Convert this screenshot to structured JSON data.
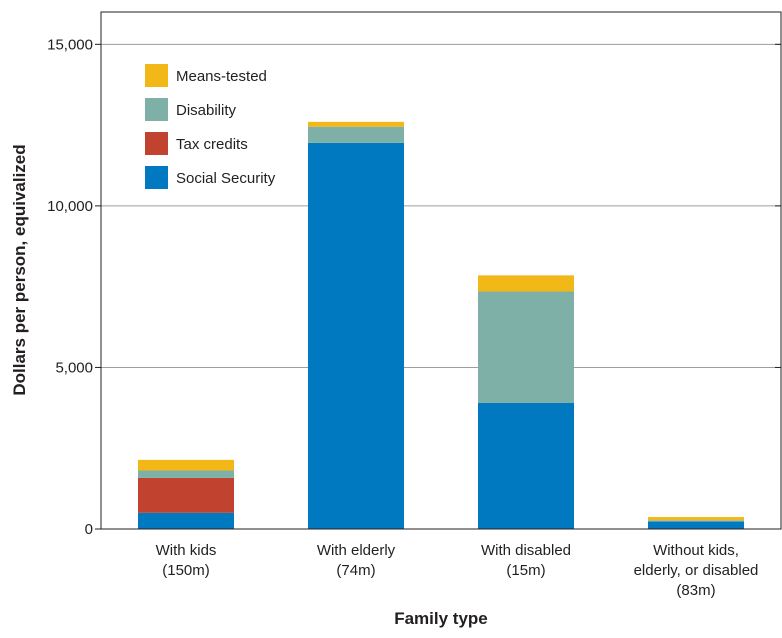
{
  "chart_data": {
    "type": "bar",
    "stacked": true,
    "title": "",
    "xlabel": "Family type",
    "ylabel": "Dollars per person, equivalized",
    "ylim": [
      0,
      16000
    ],
    "yticks": [
      0,
      5000,
      10000,
      15000
    ],
    "ytick_labels": [
      "0",
      "5,000",
      "10,000",
      "15,000"
    ],
    "grid": true,
    "legend_position": "top-left",
    "categories": [
      [
        "With kids",
        "(150m)"
      ],
      [
        "With elderly",
        "(74m)"
      ],
      [
        "With disabled",
        "(15m)"
      ],
      [
        "Without kids,",
        "elderly, or disabled",
        "(83m)"
      ]
    ],
    "series": [
      {
        "name": "Social Security",
        "color": "#0079c1",
        "values": [
          500,
          11950,
          3900,
          230
        ]
      },
      {
        "name": "Tax credits",
        "color": "#c1432f",
        "values": [
          1080,
          0,
          0,
          0
        ]
      },
      {
        "name": "Disability",
        "color": "#7fb0a7",
        "values": [
          230,
          500,
          3450,
          40
        ]
      },
      {
        "name": "Means-tested",
        "color": "#f2b818",
        "values": [
          330,
          150,
          500,
          100
        ]
      }
    ],
    "legend_order": [
      "Means-tested",
      "Disability",
      "Tax credits",
      "Social Security"
    ]
  }
}
